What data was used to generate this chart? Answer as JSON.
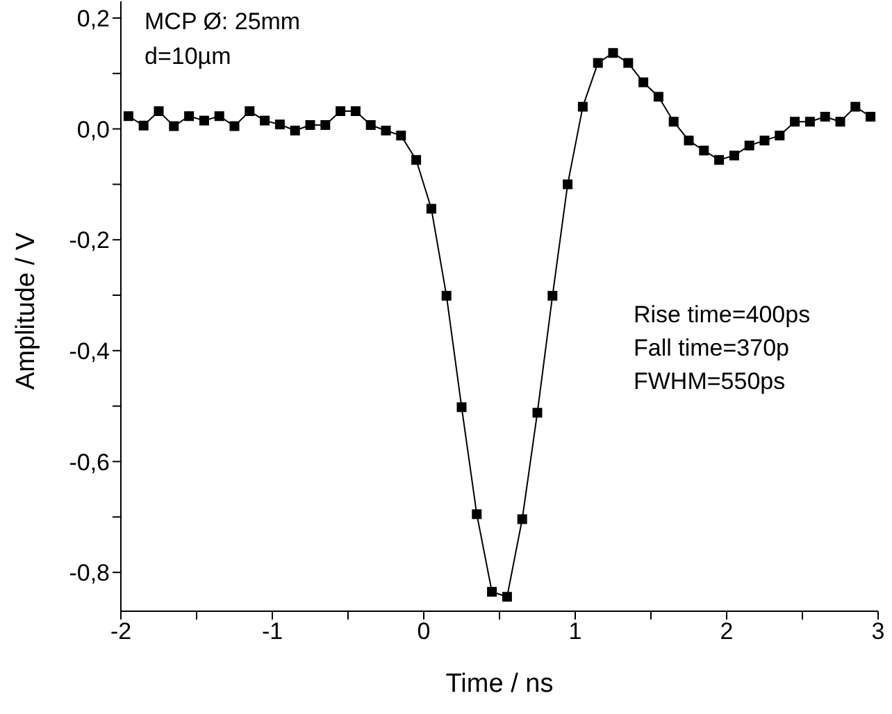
{
  "chart_data": {
    "type": "line",
    "xlabel": "Time / ns",
    "ylabel": "Amplitude / V",
    "annotations": [
      "MCP Ø: 25mm",
      "d=10µm",
      "Rise time=400ps",
      "Fall time=370p",
      "FWHM=550ps"
    ],
    "x": [
      -1.95,
      -1.85,
      -1.75,
      -1.65,
      -1.55,
      -1.45,
      -1.35,
      -1.25,
      -1.15,
      -1.05,
      -0.95,
      -0.85,
      -0.75,
      -0.65,
      -0.55,
      -0.45,
      -0.35,
      -0.25,
      -0.15,
      -0.05,
      0.05,
      0.15,
      0.25,
      0.35,
      0.45,
      0.55,
      0.65,
      0.75,
      0.85,
      0.95,
      1.05,
      1.15,
      1.25,
      1.35,
      1.45,
      1.55,
      1.65,
      1.75,
      1.85,
      1.95,
      2.05,
      2.15,
      2.25,
      2.35,
      2.45,
      2.55,
      2.65,
      2.75,
      2.85,
      2.95
    ],
    "series": [
      {
        "color": "#000000",
        "values": [
          0.023,
          0.006,
          0.032,
          0.005,
          0.023,
          0.015,
          0.023,
          0.005,
          0.032,
          0.015,
          0.008,
          -0.003,
          0.007,
          0.007,
          0.032,
          0.032,
          0.007,
          -0.003,
          -0.012,
          -0.056,
          -0.144,
          -0.301,
          -0.502,
          -0.695,
          -0.835,
          -0.844,
          -0.704,
          -0.512,
          -0.301,
          -0.1,
          0.04,
          0.119,
          0.137,
          0.119,
          0.084,
          0.058,
          0.013,
          -0.021,
          -0.039,
          -0.056,
          -0.048,
          -0.03,
          -0.021,
          -0.012,
          0.013,
          0.013,
          0.022,
          0.013,
          0.04,
          0.022
        ]
      }
    ],
    "xlim": [
      -2,
      3
    ],
    "xticks": [
      -2,
      {
        "value": -1.5,
        "label": null
      },
      -1,
      {
        "value": -0.5,
        "label": null
      },
      0,
      {
        "value": 0.5,
        "label": null
      },
      1,
      {
        "value": 1.5,
        "label": null
      },
      2,
      {
        "value": 2.5,
        "label": null
      },
      3
    ],
    "ylim": [
      -0.87,
      0.23
    ],
    "yticks": [
      {
        "value": 0.2,
        "label": "0,2"
      },
      {
        "value": 0.1,
        "label": null
      },
      {
        "value": 0,
        "label": "0,0"
      },
      {
        "value": -0.1,
        "label": null
      },
      {
        "value": -0.2,
        "label": "-0,2"
      },
      {
        "value": -0.3,
        "label": null
      },
      {
        "value": -0.4,
        "label": "-0,4"
      },
      {
        "value": -0.5,
        "label": null
      },
      {
        "value": -0.6,
        "label": "-0,6"
      },
      {
        "value": -0.7,
        "label": null
      },
      {
        "value": -0.8,
        "label": "-0,8"
      }
    ],
    "grid": false,
    "legend": false,
    "marker": "square",
    "line_style": "solid"
  }
}
